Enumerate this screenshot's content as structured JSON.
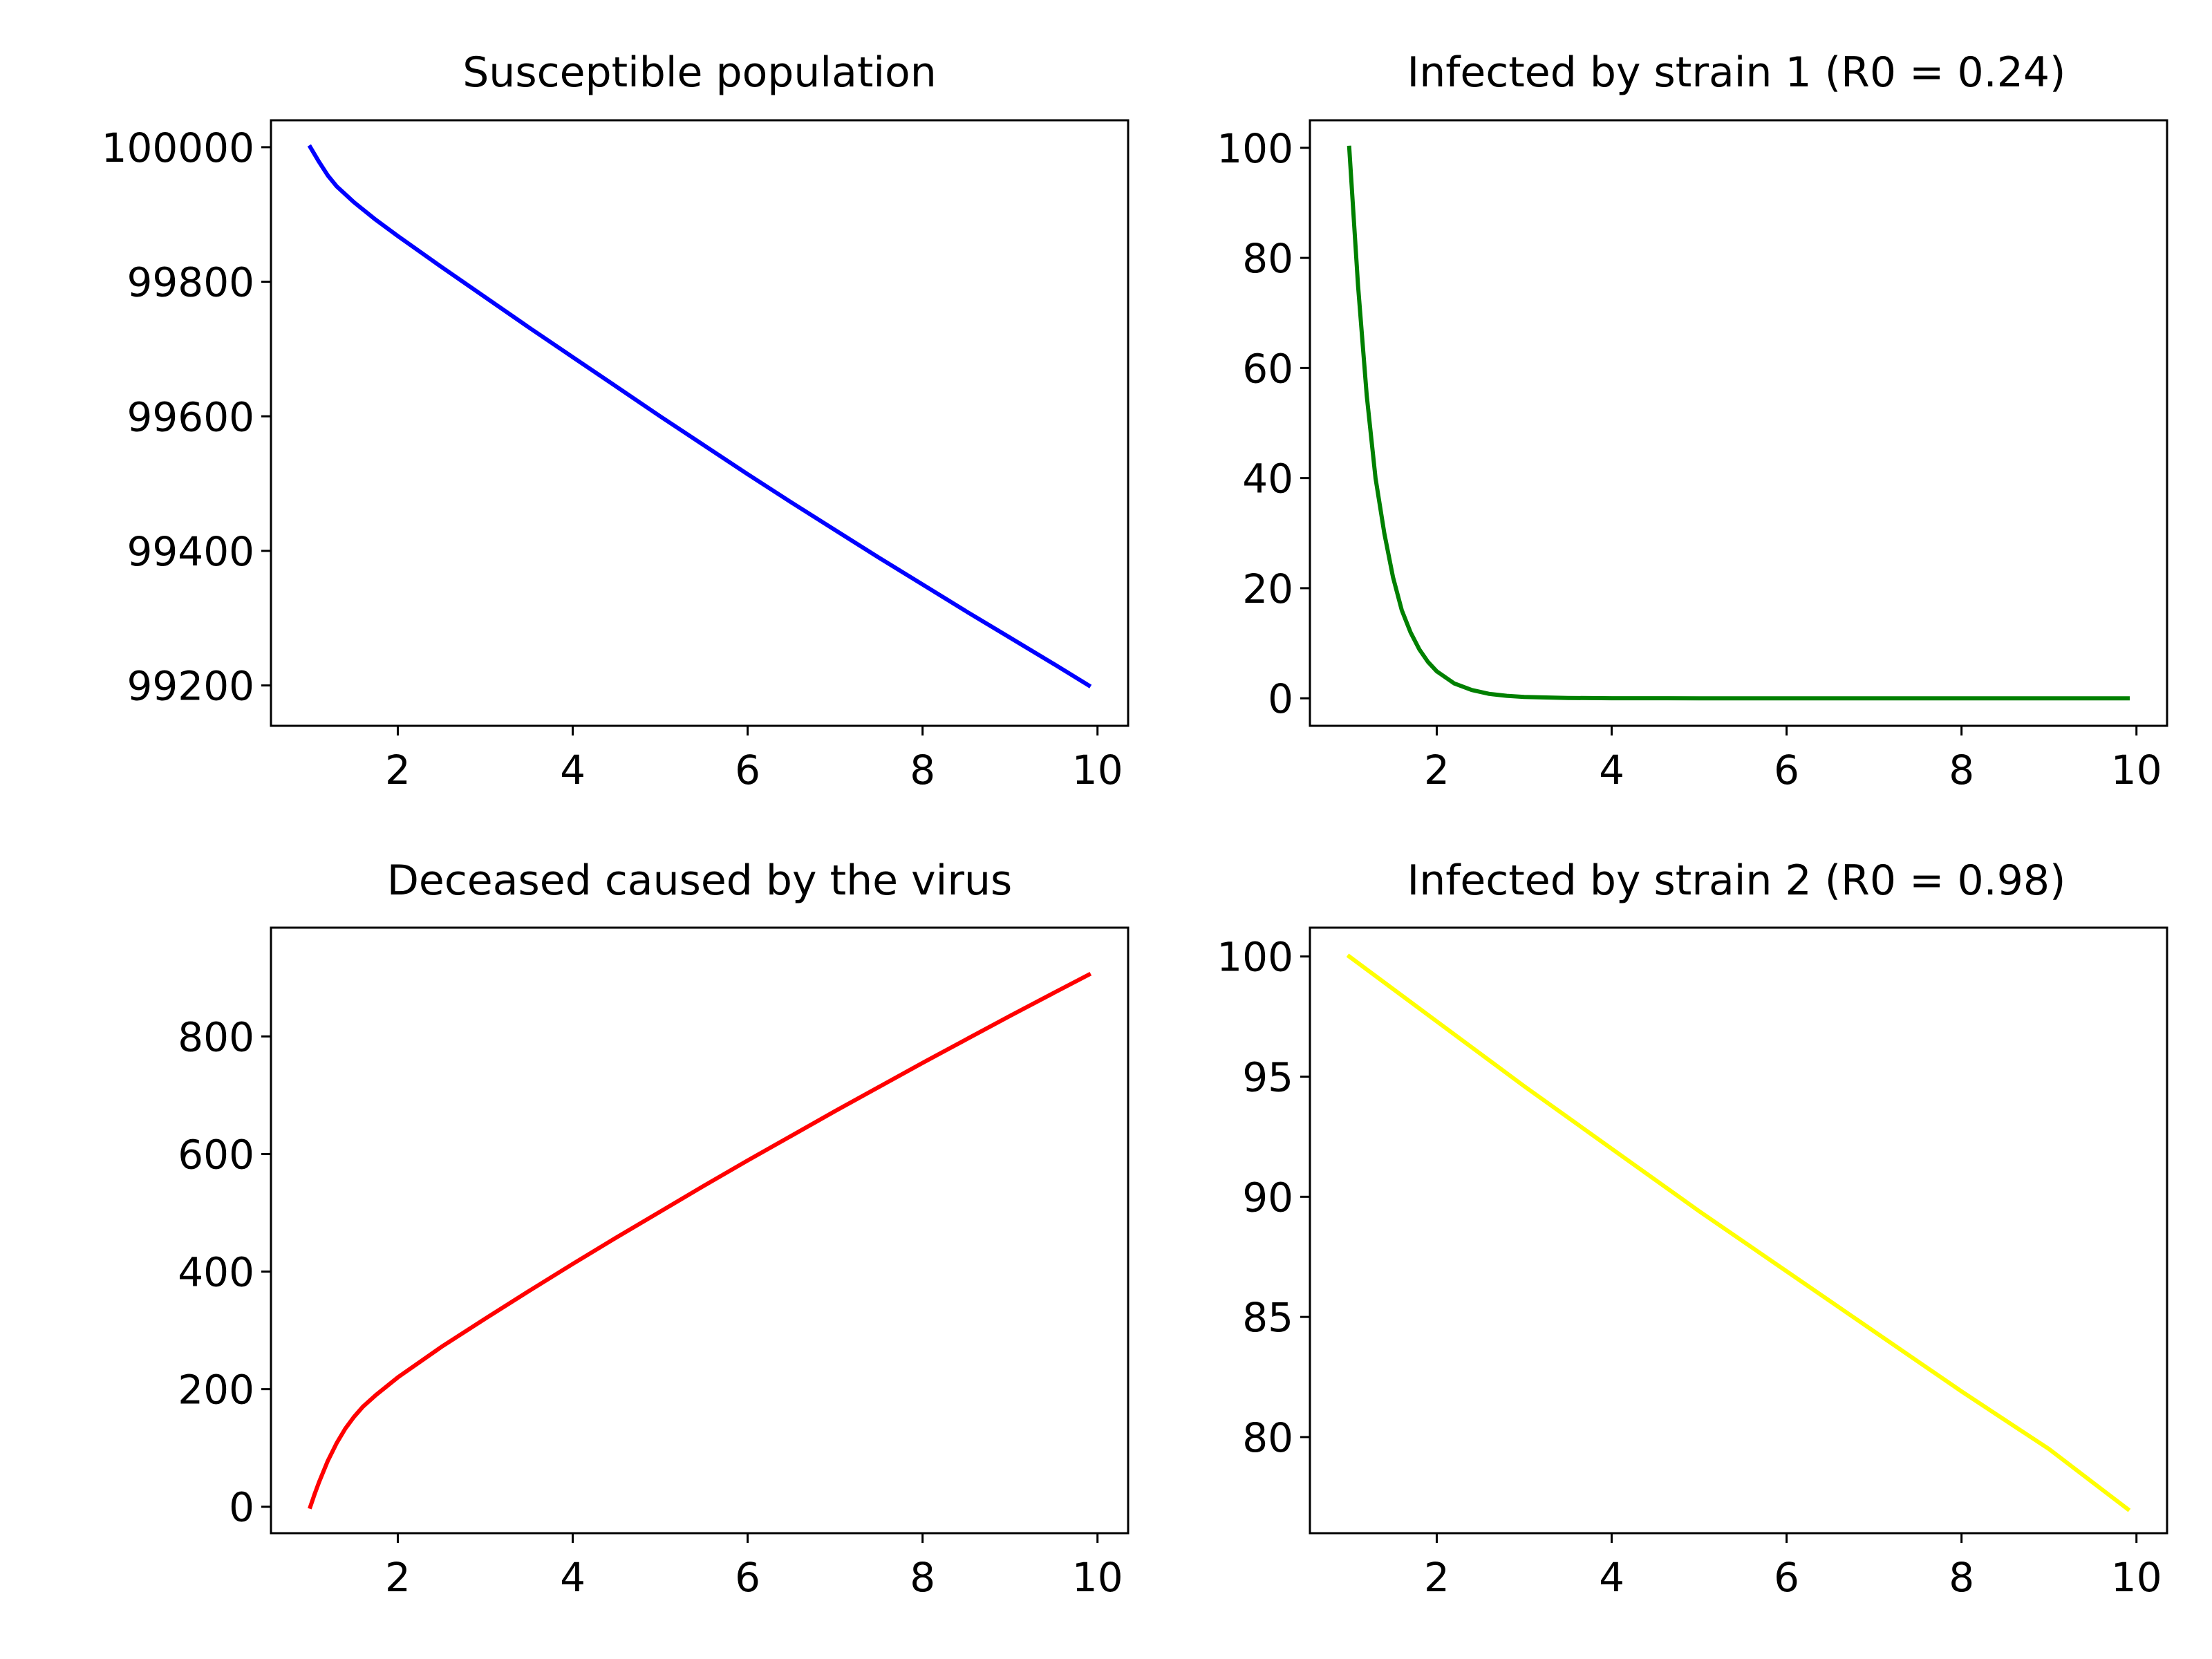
{
  "chart_data": [
    {
      "type": "line",
      "title": "Susceptible population",
      "xlabel": "",
      "ylabel": "",
      "color": "#0000ff",
      "xlim": [
        0.55,
        10.35
      ],
      "ylim": [
        99140,
        100040
      ],
      "xticks": [
        2,
        4,
        6,
        8,
        10
      ],
      "yticks": [
        99200,
        99400,
        99600,
        99800,
        100000
      ],
      "grid": false,
      "series": [
        {
          "x": [
            1.0,
            1.1,
            1.2,
            1.3,
            1.5,
            1.75,
            2.0,
            2.5,
            3.0,
            3.5,
            4.0,
            4.5,
            5.0,
            5.5,
            6.0,
            6.5,
            7.0,
            7.5,
            8.0,
            8.5,
            9.0,
            9.5,
            9.9
          ],
          "y": [
            100000,
            99978,
            99958,
            99942,
            99918,
            99892,
            99868,
            99822,
            99777,
            99732,
            99688,
            99644,
            99600,
            99557,
            99514,
            99472,
            99431,
            99390,
            99350,
            99310,
            99271,
            99232,
            99200
          ]
        }
      ]
    },
    {
      "type": "line",
      "title": "Infected by strain 1 (R0 = 0.24)",
      "xlabel": "",
      "ylabel": "",
      "color": "#008000",
      "xlim": [
        0.55,
        10.35
      ],
      "ylim": [
        -5,
        105
      ],
      "xticks": [
        2,
        4,
        6,
        8,
        10
      ],
      "yticks": [
        0,
        20,
        40,
        60,
        80,
        100
      ],
      "grid": false,
      "series": [
        {
          "x": [
            1.0,
            1.1,
            1.2,
            1.3,
            1.4,
            1.5,
            1.6,
            1.7,
            1.8,
            1.9,
            2.0,
            2.2,
            2.4,
            2.6,
            2.8,
            3.0,
            3.5,
            4.0,
            5.0,
            6.0,
            7.0,
            8.0,
            9.0,
            9.9
          ],
          "y": [
            100,
            75,
            55,
            40,
            30,
            22,
            16,
            12,
            8.9,
            6.6,
            4.9,
            2.7,
            1.5,
            0.8,
            0.45,
            0.25,
            0.06,
            0.015,
            0,
            0,
            0,
            0,
            0,
            0
          ]
        }
      ]
    },
    {
      "type": "line",
      "title": "Deceased caused by the virus",
      "xlabel": "",
      "ylabel": "",
      "color": "#ff0000",
      "xlim": [
        0.55,
        10.35
      ],
      "ylim": [
        -45,
        985
      ],
      "xticks": [
        2,
        4,
        6,
        8,
        10
      ],
      "yticks": [
        0,
        200,
        400,
        600,
        800
      ],
      "grid": false,
      "series": [
        {
          "x": [
            1.0,
            1.05,
            1.1,
            1.2,
            1.3,
            1.4,
            1.5,
            1.6,
            1.75,
            2.0,
            2.5,
            3.0,
            3.5,
            4.0,
            4.5,
            5.0,
            5.5,
            6.0,
            6.5,
            7.0,
            7.5,
            8.0,
            8.5,
            9.0,
            9.5,
            9.9
          ],
          "y": [
            0,
            22,
            42,
            78,
            108,
            133,
            153,
            170,
            190,
            220,
            272,
            320,
            367,
            413,
            458,
            502,
            546,
            589,
            631,
            673,
            714,
            755,
            795,
            835,
            874,
            905
          ]
        }
      ]
    },
    {
      "type": "line",
      "title": "Infected by strain 2 (R0 = 0.98)",
      "xlabel": "",
      "ylabel": "",
      "color": "#ffff00",
      "xlim": [
        0.55,
        10.35
      ],
      "ylim": [
        76,
        101.2
      ],
      "xticks": [
        2,
        4,
        6,
        8,
        10
      ],
      "yticks": [
        80,
        85,
        90,
        95,
        100
      ],
      "grid": false,
      "series": [
        {
          "x": [
            1.0,
            2.0,
            3.0,
            4.0,
            5.0,
            6.0,
            7.0,
            8.0,
            9.0,
            9.9
          ],
          "y": [
            100,
            97.3,
            94.6,
            92.0,
            89.4,
            86.9,
            84.4,
            81.9,
            79.5,
            77.0
          ]
        }
      ]
    }
  ]
}
